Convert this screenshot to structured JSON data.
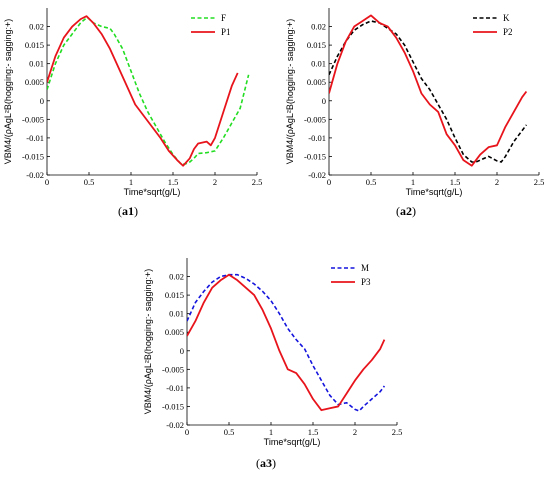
{
  "colors": {
    "F": "#22dd22",
    "P1": "#e8141c",
    "K": "#000000",
    "P2": "#e8141c",
    "M": "#1414dd",
    "P3": "#e8141c"
  },
  "chart_data": [
    {
      "type": "line",
      "panel": "a1",
      "caption_prefix": "(",
      "caption_id": "a1",
      "caption_suffix": ")",
      "xlabel": "Time*sqrt(g/L)",
      "ylabel": "VBM4/(ρAgL²B(hogging:- sagging:+)",
      "xlim": [
        0,
        2.5
      ],
      "ylim": [
        -0.02,
        0.025
      ],
      "xticks": [
        0,
        0.5,
        1,
        1.5,
        2,
        2.5
      ],
      "xtick_labels": [
        "0",
        "0.5",
        "1",
        "1.5",
        "2",
        "2.5"
      ],
      "yticks": [
        -0.02,
        -0.015,
        -0.01,
        -0.005,
        0,
        0.005,
        0.01,
        0.015,
        0.02
      ],
      "ytick_labels": [
        "-0.02",
        "-0.015",
        "-0.01",
        "-0.005",
        "0",
        "0.005",
        "0.01",
        "0.015",
        "0.02"
      ],
      "legend": "top-right",
      "series": [
        {
          "name": "F",
          "style": "dashed",
          "color_key": "F",
          "x": [
            0,
            0.1,
            0.2,
            0.3,
            0.4,
            0.48,
            0.55,
            0.65,
            0.75,
            0.8,
            0.9,
            1.0,
            1.1,
            1.2,
            1.3,
            1.4,
            1.5,
            1.6,
            1.65,
            1.7,
            1.75,
            1.8,
            1.9,
            2.0,
            2.1,
            2.2,
            2.3,
            2.4
          ],
          "y": [
            0.003,
            0.01,
            0.015,
            0.018,
            0.021,
            0.0225,
            0.021,
            0.02,
            0.0195,
            0.018,
            0.014,
            0.008,
            0.002,
            -0.003,
            -0.007,
            -0.011,
            -0.0145,
            -0.0172,
            -0.017,
            -0.0165,
            -0.0155,
            -0.0142,
            -0.014,
            -0.0135,
            -0.01,
            -0.006,
            -0.002,
            0.007
          ]
        },
        {
          "name": "P1",
          "style": "solid",
          "color_key": "P1",
          "x": [
            0,
            0.1,
            0.2,
            0.3,
            0.4,
            0.47,
            0.55,
            0.65,
            0.75,
            0.85,
            0.95,
            1.05,
            1.15,
            1.25,
            1.35,
            1.45,
            1.55,
            1.62,
            1.7,
            1.75,
            1.8,
            1.9,
            1.95,
            2.0,
            2.1,
            2.2,
            2.27
          ],
          "y": [
            0.005,
            0.012,
            0.017,
            0.02,
            0.022,
            0.0228,
            0.021,
            0.018,
            0.014,
            0.009,
            0.004,
            -0.001,
            -0.004,
            -0.007,
            -0.01,
            -0.0135,
            -0.016,
            -0.0175,
            -0.0155,
            -0.013,
            -0.0115,
            -0.011,
            -0.012,
            -0.01,
            -0.003,
            0.004,
            0.0075
          ]
        }
      ]
    },
    {
      "type": "line",
      "panel": "a2",
      "caption_prefix": "(",
      "caption_id": "a2",
      "caption_suffix": ")",
      "xlabel": "Time*sqrt(g/L)",
      "ylabel": "VBM4/(ρAgL²B(hogging:- sagging:+)",
      "xlim": [
        0,
        2.5
      ],
      "ylim": [
        -0.02,
        0.025
      ],
      "xticks": [
        0,
        0.5,
        1,
        1.5,
        2,
        2.5
      ],
      "xtick_labels": [
        "0",
        "0.5",
        "1",
        "1.5",
        "2",
        "2.5"
      ],
      "yticks": [
        -0.02,
        -0.015,
        -0.01,
        -0.005,
        0,
        0.005,
        0.01,
        0.015,
        0.02
      ],
      "ytick_labels": [
        "-0.02",
        "-0.015",
        "-0.01",
        "-0.005",
        "0",
        "0.005",
        "0.01",
        "0.015",
        "0.02"
      ],
      "legend": "top-right",
      "series": [
        {
          "name": "K",
          "style": "dashed",
          "color_key": "K",
          "x": [
            0,
            0.1,
            0.2,
            0.3,
            0.4,
            0.5,
            0.6,
            0.7,
            0.8,
            0.9,
            1.0,
            1.1,
            1.2,
            1.3,
            1.4,
            1.5,
            1.6,
            1.7,
            1.75,
            1.8,
            1.9,
            2.0,
            2.05,
            2.1,
            2.2,
            2.3,
            2.35
          ],
          "y": [
            0.007,
            0.012,
            0.016,
            0.019,
            0.0205,
            0.0215,
            0.021,
            0.0195,
            0.018,
            0.015,
            0.0105,
            0.006,
            0.003,
            -0.001,
            -0.005,
            -0.01,
            -0.0145,
            -0.0165,
            -0.0165,
            -0.016,
            -0.015,
            -0.0162,
            -0.0165,
            -0.015,
            -0.011,
            -0.008,
            -0.0065
          ]
        },
        {
          "name": "P2",
          "style": "solid",
          "color_key": "P2",
          "x": [
            0,
            0.1,
            0.2,
            0.3,
            0.4,
            0.5,
            0.6,
            0.7,
            0.8,
            0.9,
            1.0,
            1.05,
            1.1,
            1.2,
            1.3,
            1.4,
            1.5,
            1.6,
            1.7,
            1.8,
            1.9,
            2.0,
            2.1,
            2.2,
            2.3,
            2.35
          ],
          "y": [
            0.002,
            0.01,
            0.016,
            0.02,
            0.0215,
            0.023,
            0.021,
            0.02,
            0.017,
            0.013,
            0.008,
            0.005,
            0.002,
            -0.001,
            -0.003,
            -0.009,
            -0.012,
            -0.016,
            -0.0175,
            -0.0145,
            -0.0125,
            -0.012,
            -0.007,
            -0.003,
            0.001,
            0.0025
          ]
        }
      ]
    },
    {
      "type": "line",
      "panel": "a3",
      "caption_prefix": "(",
      "caption_id": "a3",
      "caption_suffix": ")",
      "xlabel": "Time*sqrt(g/L)",
      "ylabel": "VBM4/(ρAgL²B(hogging:- sagging:+)",
      "xlim": [
        0,
        2.5
      ],
      "ylim": [
        -0.02,
        0.025
      ],
      "xticks": [
        0,
        0.5,
        1,
        1.5,
        2,
        2.5
      ],
      "xtick_labels": [
        "0",
        "0.5",
        "1",
        "1.5",
        "2",
        "2.5"
      ],
      "yticks": [
        -0.02,
        -0.015,
        -0.01,
        -0.005,
        0,
        0.005,
        0.01,
        0.015,
        0.02
      ],
      "ytick_labels": [
        "-0.02",
        "-0.015",
        "-0.01",
        "-0.005",
        "0",
        "0.005",
        "0.01",
        "0.015",
        "0.02"
      ],
      "legend": "top-right",
      "series": [
        {
          "name": "M",
          "style": "dashed",
          "color_key": "M",
          "x": [
            0,
            0.1,
            0.2,
            0.3,
            0.4,
            0.5,
            0.6,
            0.7,
            0.8,
            0.9,
            1.0,
            1.1,
            1.2,
            1.3,
            1.4,
            1.5,
            1.6,
            1.7,
            1.8,
            1.9,
            2.0,
            2.05,
            2.1,
            2.2,
            2.3,
            2.35
          ],
          "y": [
            0.008,
            0.013,
            0.016,
            0.0185,
            0.02,
            0.0205,
            0.0205,
            0.0195,
            0.018,
            0.016,
            0.0135,
            0.01,
            0.006,
            0.003,
            0.0005,
            -0.004,
            -0.008,
            -0.012,
            -0.0145,
            -0.014,
            -0.0158,
            -0.0162,
            -0.015,
            -0.013,
            -0.011,
            -0.0095
          ]
        },
        {
          "name": "P3",
          "style": "solid",
          "color_key": "P3",
          "x": [
            0,
            0.1,
            0.2,
            0.3,
            0.4,
            0.5,
            0.6,
            0.7,
            0.8,
            0.9,
            1.0,
            1.05,
            1.1,
            1.2,
            1.3,
            1.4,
            1.5,
            1.6,
            1.7,
            1.8,
            1.9,
            2.0,
            2.1,
            2.2,
            2.3,
            2.35
          ],
          "y": [
            0.004,
            0.008,
            0.013,
            0.017,
            0.019,
            0.0205,
            0.019,
            0.017,
            0.015,
            0.011,
            0.006,
            0.003,
            0.0,
            -0.005,
            -0.006,
            -0.009,
            -0.013,
            -0.016,
            -0.0155,
            -0.015,
            -0.0115,
            -0.008,
            -0.005,
            -0.0025,
            0.0005,
            0.003
          ]
        }
      ]
    }
  ]
}
